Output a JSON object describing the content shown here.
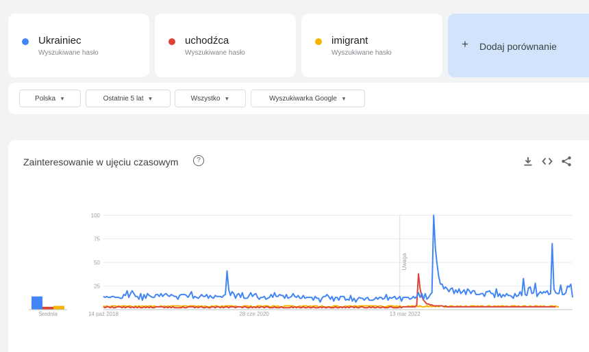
{
  "terms": [
    {
      "name": "Ukrainiec",
      "subtitle": "Wyszukiwane hasło",
      "color": "#4285f4"
    },
    {
      "name": "uchodźca",
      "subtitle": "Wyszukiwane hasło",
      "color": "#db4437"
    },
    {
      "name": "imigrant",
      "subtitle": "Wyszukiwane hasło",
      "color": "#f4b400"
    }
  ],
  "add_comparison": {
    "icon": "plus-icon",
    "label": "Dodaj porównanie"
  },
  "filters": [
    {
      "label": "Polska"
    },
    {
      "label": "Ostatnie 5 lat"
    },
    {
      "label": "Wszystko"
    },
    {
      "label": "Wyszukiwarka Google"
    }
  ],
  "panel": {
    "title": "Zainteresowanie w ujęciu czasowym",
    "help_icon": "help-icon",
    "tools": [
      "download-icon",
      "embed-code-icon",
      "share-icon"
    ]
  },
  "chart_data": {
    "type": "line",
    "y_ticks": [
      25,
      50,
      75,
      100
    ],
    "ylim": [
      0,
      100
    ],
    "x_tick_labels": [
      "14 paź 2018",
      "28 cze 2020",
      "13 mar 2022"
    ],
    "x_tick_index": [
      0,
      89,
      178
    ],
    "avg_label": "Średnia",
    "averages": [
      14,
      3,
      4
    ],
    "annotation": {
      "label": "Uwaga",
      "index": 175
    },
    "series": [
      {
        "name": "Ukrainiec",
        "color": "#4285f4",
        "values": [
          14,
          13,
          14,
          13,
          13,
          14,
          14,
          13,
          13,
          13,
          12,
          12,
          16,
          15,
          20,
          13,
          17,
          20,
          17,
          14,
          14,
          11,
          17,
          10,
          16,
          12,
          17,
          15,
          14,
          13,
          13,
          16,
          16,
          14,
          17,
          14,
          16,
          17,
          15,
          14,
          16,
          15,
          14,
          14,
          11,
          15,
          16,
          16,
          16,
          15,
          13,
          16,
          19,
          12,
          14,
          13,
          12,
          14,
          16,
          14,
          14,
          16,
          12,
          15,
          13,
          12,
          15,
          14,
          14,
          14,
          13,
          15,
          16,
          41,
          21,
          15,
          19,
          17,
          12,
          16,
          17,
          13,
          18,
          12,
          12,
          12,
          15,
          18,
          14,
          16,
          17,
          13,
          11,
          13,
          13,
          14,
          11,
          12,
          13,
          16,
          13,
          18,
          14,
          14,
          16,
          15,
          15,
          12,
          16,
          12,
          13,
          14,
          17,
          14,
          13,
          15,
          12,
          12,
          15,
          12,
          13,
          13,
          13,
          13,
          10,
          14,
          12,
          12,
          8,
          12,
          14,
          14,
          16,
          14,
          11,
          14,
          9,
          13,
          13,
          10,
          14,
          14,
          14,
          10,
          11,
          10,
          15,
          9,
          12,
          8,
          11,
          13,
          12,
          12,
          10,
          12,
          13,
          10,
          10,
          10,
          11,
          13,
          11,
          13,
          13,
          11,
          12,
          16,
          10,
          13,
          12,
          13,
          14,
          11,
          12,
          14,
          9,
          13,
          13,
          13,
          13,
          11,
          12,
          14,
          12,
          14,
          18,
          13,
          17,
          11,
          17,
          11,
          13,
          16,
          18,
          100,
          65,
          48,
          35,
          27,
          27,
          22,
          24,
          22,
          19,
          22,
          23,
          17,
          21,
          18,
          22,
          17,
          19,
          21,
          16,
          22,
          20,
          17,
          20,
          20,
          16,
          16,
          16,
          17,
          17,
          14,
          19,
          19,
          20,
          17,
          17,
          13,
          22,
          14,
          17,
          13,
          16,
          14,
          17,
          15,
          15,
          14,
          12,
          17,
          14,
          15,
          19,
          15,
          33,
          16,
          15,
          23,
          24,
          17,
          18,
          28,
          14,
          17,
          19,
          17,
          19,
          18,
          20,
          16,
          17,
          70,
          22,
          18,
          17,
          17,
          26,
          16,
          16,
          18,
          25,
          24,
          27,
          13
        ]
      },
      {
        "name": "uchodźca",
        "color": "#db4437",
        "values": [
          3,
          2,
          3,
          3,
          2,
          3,
          2,
          2,
          3,
          3,
          3,
          2,
          3,
          2,
          3,
          3,
          2,
          3,
          2,
          3,
          2,
          3,
          2,
          2,
          3,
          2,
          3,
          2,
          3,
          2,
          2,
          3,
          3,
          3,
          3,
          3,
          2,
          3,
          2,
          3,
          2,
          3,
          2,
          2,
          2,
          2,
          2,
          3,
          2,
          2,
          3,
          3,
          3,
          3,
          2,
          3,
          2,
          3,
          3,
          2,
          2,
          3,
          2,
          2,
          3,
          3,
          2,
          3,
          3,
          2,
          3,
          2,
          3,
          3,
          2,
          3,
          3,
          3,
          2,
          3,
          3,
          3,
          2,
          3,
          3,
          2,
          2,
          3,
          2,
          3,
          2,
          3,
          2,
          3,
          3,
          2,
          3,
          3,
          2,
          2,
          2,
          3,
          2,
          2,
          2,
          3,
          2,
          2,
          2,
          2,
          2,
          3,
          2,
          3,
          2,
          3,
          2,
          2,
          3,
          2,
          2,
          3,
          2,
          2,
          3,
          2,
          2,
          2,
          3,
          2,
          3,
          2,
          2,
          3,
          2,
          2,
          2,
          3,
          2,
          2,
          3,
          2,
          3,
          2,
          3,
          2,
          3,
          3,
          2,
          3,
          2,
          2,
          3,
          3,
          2,
          2,
          2,
          3,
          2,
          3,
          2,
          2,
          3,
          2,
          2,
          3,
          2,
          2,
          2,
          3,
          3,
          2,
          2,
          2,
          2,
          3,
          2,
          3,
          3,
          3,
          3,
          3,
          3,
          3,
          3,
          5,
          38,
          22,
          14,
          10,
          8,
          6,
          6,
          5,
          5,
          4,
          4,
          4,
          4,
          4,
          4,
          3,
          4,
          3,
          3,
          3,
          3,
          3,
          3,
          3,
          3,
          3,
          3,
          3,
          3,
          3,
          3,
          3,
          3,
          3,
          3,
          3,
          3,
          3,
          3,
          3,
          3,
          3,
          3,
          3,
          3,
          3,
          3,
          3,
          3,
          3,
          3,
          3,
          3,
          3,
          3,
          3,
          3,
          3,
          3,
          3,
          3,
          3,
          3,
          3,
          3,
          3,
          3,
          3,
          3,
          3,
          3,
          3,
          3,
          3,
          3,
          3,
          3,
          3,
          3,
          3,
          3,
          3
        ]
      },
      {
        "name": "imigrant",
        "color": "#f4b400",
        "values": [
          4,
          3,
          4,
          3,
          3,
          4,
          4,
          4,
          3,
          4,
          3,
          4,
          4,
          4,
          3,
          4,
          4,
          3,
          3,
          4,
          3,
          4,
          3,
          4,
          3,
          4,
          3,
          4,
          4,
          3,
          4,
          3,
          3,
          3,
          4,
          3,
          4,
          3,
          4,
          3,
          4,
          4,
          4,
          4,
          4,
          4,
          3,
          4,
          4,
          4,
          3,
          4,
          4,
          4,
          4,
          3,
          4,
          3,
          4,
          3,
          4,
          3,
          3,
          3,
          4,
          3,
          4,
          4,
          3,
          3,
          4,
          3,
          4,
          4,
          4,
          4,
          4,
          3,
          4,
          3,
          3,
          3,
          3,
          4,
          4,
          4,
          3,
          4,
          3,
          3,
          3,
          4,
          4,
          4,
          3,
          4,
          4,
          4,
          3,
          3,
          4,
          4,
          3,
          4,
          3,
          3,
          3,
          4,
          4,
          4,
          4,
          4,
          4,
          3,
          3,
          3,
          4,
          3,
          4,
          4,
          4,
          3,
          4,
          3,
          4,
          4,
          4,
          3,
          3,
          4,
          3,
          3,
          3,
          3,
          3,
          3,
          4,
          4,
          4,
          3,
          3,
          3,
          3,
          4,
          3,
          4,
          4,
          3,
          4,
          4,
          3,
          4,
          4,
          4,
          4,
          4,
          4,
          4,
          4,
          4,
          4,
          4,
          3,
          4,
          4,
          3,
          3,
          3,
          4,
          4,
          4,
          4,
          3,
          4,
          3,
          4,
          3,
          3,
          3,
          3,
          4,
          3,
          4,
          4,
          3,
          4,
          3,
          4,
          3,
          3,
          3,
          4,
          3,
          4,
          3,
          4,
          3,
          4,
          3,
          4,
          4,
          3,
          3,
          3,
          3,
          4,
          4,
          3,
          3,
          4,
          3,
          4,
          3,
          3,
          4,
          3,
          3,
          4,
          4,
          4,
          3,
          4,
          3,
          4,
          4,
          3,
          3,
          4,
          4,
          3,
          3,
          4,
          3,
          4,
          3,
          4,
          4,
          3,
          4,
          3,
          3,
          4,
          4,
          4,
          3,
          4,
          3,
          3,
          4,
          4,
          3,
          3,
          4,
          3,
          3,
          4,
          4,
          3,
          4,
          3,
          4,
          3,
          3,
          3,
          4,
          4,
          3,
          4,
          3,
          3
        ]
      }
    ]
  }
}
